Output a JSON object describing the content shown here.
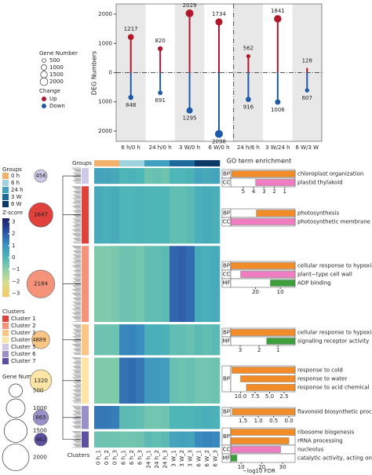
{
  "chart_data": [
    {
      "type": "lollipop",
      "y_label": "DEG Numbers",
      "categories": [
        "6 h/0 h",
        "24 h/0 h",
        "3 W/0 h",
        "6 W/0 h",
        "24 h/6 h",
        "3 W/24 h",
        "6 W/3 W"
      ],
      "series": [
        {
          "name": "Up",
          "color": "#b2182b",
          "values": [
            1217,
            820,
            2029,
            1734,
            562,
            1841,
            128
          ]
        },
        {
          "name": "Down",
          "color": "#1f5aa6",
          "values": [
            -848,
            -691,
            -1295,
            -2098,
            -916,
            -1006,
            -607
          ],
          "value_labels": [
            "848",
            "691",
            "1295",
            "2098",
            "916",
            "1006",
            "607"
          ]
        }
      ],
      "ylim": [
        -2350,
        2350
      ],
      "yticks": [
        2000,
        1000,
        0,
        {
          "value": -1000,
          "label": "1000"
        },
        {
          "value": -2000,
          "label": "2000"
        }
      ],
      "size_legend": {
        "title": "Gene Number",
        "values": [
          500,
          1000,
          1500,
          2000
        ]
      },
      "color_legend_title": "Change"
    },
    {
      "type": "heatmap",
      "groups_title": "Groups",
      "groups": [
        {
          "name": "0 h",
          "color": "#f2b26b"
        },
        {
          "name": "6 h",
          "color": "#9fd3de"
        },
        {
          "name": "24 h",
          "color": "#3fa0bf"
        },
        {
          "name": "3 W",
          "color": "#1d6a9c"
        },
        {
          "name": "6 W",
          "color": "#0b3a66"
        }
      ],
      "columns": [
        "0 h_1",
        "0 h_2",
        "0 h_3",
        "6 h_1",
        "6 h_2",
        "6 h_3",
        "24 h_1",
        "24 h_2",
        "24 h_3",
        "3 W_1",
        "3 W_2",
        "3 W_3",
        "6 W_1",
        "6 W_2",
        "6 W_3"
      ],
      "z_title": "Z-score",
      "zlim": [
        -3.3,
        3.3
      ],
      "zticks": [
        3,
        2,
        1,
        0,
        {
          "value": -1,
          "label": "−1"
        },
        {
          "value": -2,
          "label": "−2"
        },
        {
          "value": -3,
          "label": "−3"
        }
      ],
      "z_colors": [
        "#f5c76a",
        "#dcdc8c",
        "#93d1a8",
        "#4fb6b7",
        "#3a8fc0",
        "#2c4fa3",
        "#1b1f6b"
      ],
      "clusters_title": "Clusters",
      "cluster_legend": [
        {
          "name": "Cluster 1",
          "color": "#e0413b"
        },
        {
          "name": "Cluster 2",
          "color": "#f4927a"
        },
        {
          "name": "Cluster 3",
          "color": "#fbc583"
        },
        {
          "name": "Cluster 4",
          "color": "#fde5a6"
        },
        {
          "name": "Cluster 5",
          "color": "#cfc8e6"
        },
        {
          "name": "Cluster 6",
          "color": "#9a8fc7"
        },
        {
          "name": "Cluster 7",
          "color": "#5e4fa2"
        }
      ],
      "rows": [
        {
          "color": "#cfc8e6",
          "size": 456,
          "values": [
            0.5,
            0.5,
            0.4,
            0,
            0.1,
            0,
            -0.5,
            -0.4,
            -0.5,
            0,
            0,
            0.1,
            0.5,
            0.4,
            0.5
          ]
        },
        {
          "color": "#e0413b",
          "size": 1647,
          "values": [
            0.3,
            0.2,
            0.3,
            0,
            0,
            0.1,
            0,
            0,
            0,
            -0.3,
            -0.3,
            -0.2,
            0.2,
            0.3,
            0.2
          ]
        },
        {
          "color": "#f4927a",
          "size": 2184,
          "values": [
            -0.8,
            -0.8,
            -0.7,
            -0.5,
            -0.5,
            -0.6,
            -0.3,
            -0.3,
            -0.2,
            1.8,
            1.9,
            1.7,
            0.3,
            0.2,
            0.3
          ]
        },
        {
          "color": "#fbc583",
          "size": 889,
          "values": [
            -0.5,
            -0.5,
            -0.5,
            1.2,
            1.3,
            1.1,
            0.2,
            0.2,
            0.1,
            -0.3,
            -0.3,
            -0.4,
            -0.2,
            -0.3,
            -0.2
          ]
        },
        {
          "color": "#fde5a6",
          "size": 1320,
          "values": [
            -0.8,
            -0.8,
            -0.8,
            1.6,
            1.7,
            1.5,
            0.8,
            0.8,
            0.7,
            -0.4,
            -0.5,
            -0.4,
            -0.6,
            -0.6,
            -0.5
          ]
        },
        {
          "color": "#9a8fc7",
          "size": 665,
          "values": [
            1.5,
            1.5,
            1.4,
            -0.2,
            -0.2,
            -0.3,
            -0.6,
            -0.6,
            -0.5,
            0,
            0,
            0,
            0.1,
            0.2,
            0.1
          ]
        },
        {
          "color": "#5e4fa2",
          "size": 462,
          "values": [
            -0.5,
            -0.5,
            -0.5,
            -0.6,
            -0.6,
            -0.5,
            -0.2,
            -0.3,
            -0.2,
            0.5,
            0.6,
            0.5,
            1.2,
            1.3,
            1.2
          ]
        }
      ],
      "size_legend": {
        "title": "Gene Number",
        "values": [
          500,
          1000,
          1500,
          2000
        ]
      },
      "x_label": "Clusters"
    },
    {
      "type": "go_bars",
      "title": "GO term enrichment",
      "x_label": "−log10 FDR",
      "colors": {
        "BP": "#f28c28",
        "CC": "#f07cc2",
        "MF": "#3c9f3c"
      },
      "panels": [
        {
          "xlim": [
            6.2,
            0
          ],
          "xticks": [
            5,
            4,
            3,
            2,
            1
          ],
          "groups": [
            {
              "category": "BP",
              "terms": [
                {
                  "name": "chloroplast organization",
                  "value": 6.1
                }
              ]
            },
            {
              "category": "CC",
              "terms": [
                {
                  "name": "plastid thylakoid",
                  "value": 3.8
                }
              ]
            }
          ]
        },
        {
          "xlim": [
            10,
            0
          ],
          "xticks": [],
          "groups": [
            {
              "category": "BP",
              "terms": [
                {
                  "name": "photosynthesis",
                  "value": 6
                }
              ]
            },
            {
              "category": "CC",
              "terms": [
                {
                  "name": "photosynthetic membrane",
                  "value": 10
                }
              ]
            }
          ]
        },
        {
          "xlim": [
            30,
            4
          ],
          "xticks": [
            20,
            10
          ],
          "groups": [
            {
              "category": "BP",
              "terms": [
                {
                  "name": "cellular response to hypoxia",
                  "value": 30
                }
              ]
            },
            {
              "category": "CC",
              "terms": [
                {
                  "name": "plant−type cell wall",
                  "value": 26
                }
              ]
            },
            {
              "category": "MF",
              "terms": [
                {
                  "name": "ADP binding",
                  "value": 14
                }
              ]
            }
          ]
        },
        {
          "xlim": [
            3.5,
            0.1
          ],
          "xticks": [
            3,
            2,
            1
          ],
          "groups": [
            {
              "category": "BP",
              "terms": [
                {
                  "name": "cellular response to hypoxia",
                  "value": 3.5
                }
              ]
            },
            {
              "category": "MF",
              "terms": [
                {
                  "name": "signaling receptor activity",
                  "value": 1.6
                }
              ]
            }
          ]
        },
        {
          "xlim": [
            11.7,
            0.6
          ],
          "xticks": [
            {
              "value": 10,
              "label": "10.0"
            },
            7.5,
            {
              "value": 5,
              "label": "5.0"
            },
            2.5
          ],
          "groups": [
            {
              "category": "BP",
              "terms": [
                {
                  "name": "response to cold",
                  "value": 11.5
                },
                {
                  "name": "response to water",
                  "value": 10
                },
                {
                  "name": "response to acid chemical",
                  "value": 9
                }
              ]
            }
          ]
        },
        {
          "xlim": [
            1.9,
            -0.2
          ],
          "xticks": [
            {
              "value": 1.5,
              "label": "1.5"
            },
            {
              "value": 1,
              "label": "1.0"
            },
            {
              "value": 0.5,
              "label": "0.5"
            },
            {
              "value": 0,
              "label": "0.0"
            }
          ],
          "groups": [
            {
              "category": "BP",
              "terms": [
                {
                  "name": "flavonoid biosynthetic process",
                  "value": 1.85
                }
              ]
            }
          ]
        },
        {
          "xlim": [
            5,
            36
          ],
          "xticks": [
            10,
            20,
            30
          ],
          "groups": [
            {
              "category": "BP",
              "terms": [
                {
                  "name": "ribosome biogenesis",
                  "value": 36
                },
                {
                  "name": "rRNA processing",
                  "value": 33
                }
              ]
            },
            {
              "category": "CC",
              "terms": [
                {
                  "name": "nucleolus",
                  "value": 29
                }
              ]
            },
            {
              "category": "MF",
              "terms": [
                {
                  "name": "catalytic activity, acting on RNA",
                  "value": 8
                }
              ]
            }
          ]
        }
      ]
    }
  ]
}
